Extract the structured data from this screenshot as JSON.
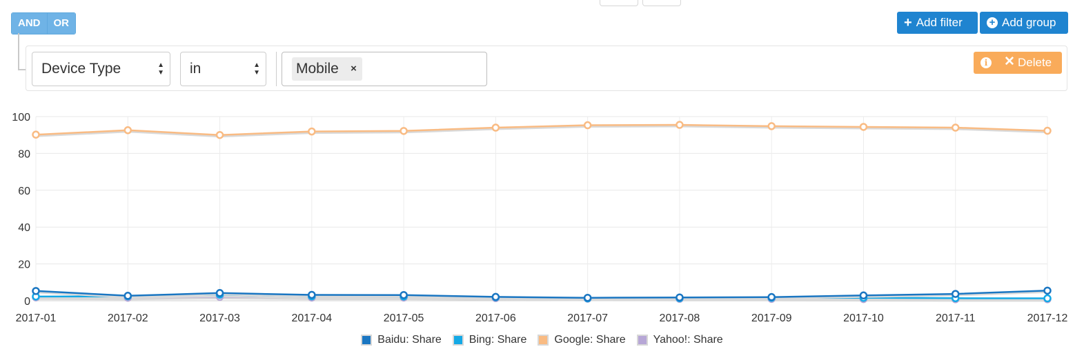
{
  "query_builder": {
    "and_label": "AND",
    "or_label": "OR",
    "add_filter_label": "Add filter",
    "add_group_label": "Add group",
    "rule": {
      "field": "Device Type",
      "operator": "in",
      "values": [
        "Mobile"
      ],
      "remove_tag_label": "×",
      "delete_label": "Delete"
    }
  },
  "colors": {
    "primary": "#1f84d0",
    "delete": "#f9ab5a",
    "bool": "#6fb3e6"
  },
  "chart_data": {
    "type": "line",
    "x": [
      "2017-01",
      "2017-02",
      "2017-03",
      "2017-04",
      "2017-05",
      "2017-06",
      "2017-07",
      "2017-08",
      "2017-09",
      "2017-10",
      "2017-11",
      "2017-12"
    ],
    "ylim": [
      0,
      100
    ],
    "yticks": [
      0,
      20,
      40,
      60,
      80,
      100
    ],
    "grid": true,
    "legend_position": "bottom",
    "series": [
      {
        "name": "Baidu: Share",
        "color": "#1a76c2",
        "values": [
          5.3,
          2.7,
          4.2,
          3.2,
          3.1,
          2.1,
          1.6,
          1.8,
          2.0,
          2.9,
          3.7,
          5.5
        ]
      },
      {
        "name": "Bing: Share",
        "color": "#14a9e6",
        "values": [
          2.3,
          2.4,
          3.3,
          2.4,
          2.3,
          1.9,
          1.3,
          1.4,
          1.6,
          1.6,
          1.4,
          1.3
        ]
      },
      {
        "name": "Google: Share",
        "color": "#f9bb83",
        "values": [
          90.2,
          92.6,
          90.0,
          91.9,
          92.2,
          94.0,
          95.3,
          95.5,
          94.8,
          94.4,
          94.0,
          92.3
        ]
      },
      {
        "name": "Yahoo!: Share",
        "color": "#b7a7d6",
        "values": [
          1.8,
          1.6,
          2.1,
          1.7,
          1.7,
          1.4,
          1.1,
          1.0,
          1.0,
          0.9,
          0.8,
          0.8
        ]
      }
    ]
  }
}
